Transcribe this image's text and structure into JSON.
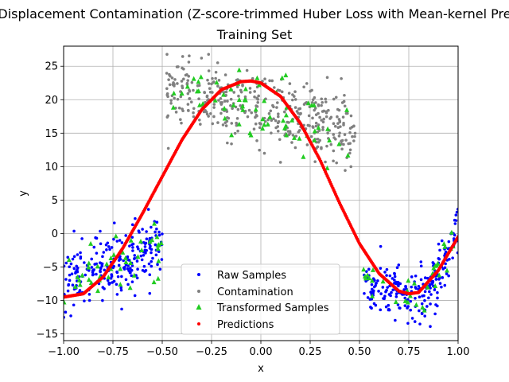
{
  "chart_data": {
    "type": "scatter",
    "title": "Displacement Contamination (Z-score-trimmed Huber Loss with Mean-kernel Pre",
    "subtitle": "Training Set",
    "xlabel": "x",
    "ylabel": "y",
    "xlim": [
      -1.0,
      1.0
    ],
    "ylim": [
      -16,
      28
    ],
    "x_ticks": [
      -1.0,
      -0.75,
      -0.5,
      -0.25,
      0.0,
      0.25,
      0.5,
      0.75,
      1.0
    ],
    "x_tick_labels": [
      "−1.00",
      "−0.75",
      "−0.50",
      "−0.25",
      "0.00",
      "0.25",
      "0.50",
      "0.75",
      "1.00"
    ],
    "y_ticks": [
      -15,
      -10,
      -5,
      0,
      5,
      10,
      15,
      20,
      25
    ],
    "y_tick_labels": [
      "−15",
      "−10",
      "−5",
      "0",
      "5",
      "10",
      "15",
      "20",
      "25"
    ],
    "grid": true,
    "legend_position": "lower-center",
    "series": [
      {
        "name": "Raw Samples",
        "marker": "dot",
        "color": "#0000ff",
        "clusters": [
          {
            "x_range": [
              -1.0,
              -0.5
            ],
            "mean_curve": "linear",
            "y_start": -8,
            "y_end": -1.5,
            "spread": 2.5,
            "count": 240
          },
          {
            "x_range": [
              0.52,
              1.0
            ],
            "mean_curve": "valley",
            "y_start": -7,
            "y_mid": -9.5,
            "y_end": 1.5,
            "spread": 2.0,
            "count": 220
          }
        ]
      },
      {
        "name": "Contamination",
        "marker": "dot",
        "color": "#808080",
        "clusters": [
          {
            "x_range": [
              -0.48,
              0.48
            ],
            "mean_curve": "linear",
            "y_start": 21.5,
            "y_end": 15.5,
            "spread": 2.5,
            "count": 420
          }
        ]
      },
      {
        "name": "Transformed Samples",
        "marker": "triangle",
        "color": "#22cc22",
        "clusters": [
          {
            "x_range": [
              -1.0,
              -0.5
            ],
            "mean_curve": "linear",
            "y_start": -8,
            "y_end": -1.5,
            "spread": 2.5,
            "count": 45
          },
          {
            "x_range": [
              -0.46,
              0.46
            ],
            "mean_curve": "linear",
            "y_start": 21.5,
            "y_end": 15.5,
            "spread": 2.5,
            "count": 65
          },
          {
            "x_range": [
              0.52,
              1.0
            ],
            "mean_curve": "valley",
            "y_start": -7,
            "y_mid": -9.5,
            "y_end": 1.0,
            "spread": 1.8,
            "count": 35
          }
        ]
      },
      {
        "name": "Predictions",
        "marker": "dot",
        "color": "#ff0000",
        "curve": {
          "x": [
            -1.0,
            -0.9,
            -0.8,
            -0.7,
            -0.6,
            -0.5,
            -0.4,
            -0.3,
            -0.2,
            -0.1,
            -0.05,
            0.0,
            0.1,
            0.2,
            0.3,
            0.4,
            0.5,
            0.6,
            0.7,
            0.75,
            0.8,
            0.9,
            1.0
          ],
          "y": [
            -9.5,
            -9.0,
            -6.5,
            -2.2,
            3.0,
            8.5,
            14.0,
            18.5,
            21.5,
            22.7,
            22.8,
            22.5,
            20.5,
            16.5,
            11.0,
            4.5,
            -1.5,
            -6.0,
            -8.6,
            -9.0,
            -8.8,
            -5.5,
            -0.5
          ],
          "count": 420
        }
      }
    ]
  }
}
